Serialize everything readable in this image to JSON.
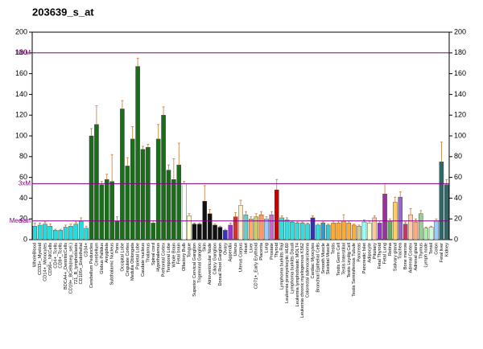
{
  "chart_data": {
    "type": "bar",
    "title": "203639_s_at",
    "ylim": [
      0,
      200
    ],
    "yticks": [
      0,
      20,
      40,
      60,
      80,
      100,
      120,
      140,
      160,
      180,
      200
    ],
    "reference_lines": [
      {
        "label": "10xM",
        "value": 180
      },
      {
        "label": "3xM",
        "value": 54
      },
      {
        "label": "Median",
        "value": 18
      }
    ],
    "categories": [
      "WholeBlood",
      "CD33+_Myeloid",
      "CD14+_Monocytes",
      "CD56+_NKCells",
      "CD4+_Tcells",
      "CD8+_Tcells",
      "BDCA4+_DentriticCells",
      "CD19+_BCells(neg._sel.)",
      "721_B_lymphoblasts",
      "CD105+_Endothelial",
      "CD34+",
      "Cerebellum Peduncles",
      "Cerebellum",
      "Globus Pallidus",
      "Amygdala",
      "Subthalamic Nucleus",
      "Pons",
      "Occipital Lobe",
      "Cingulate Cortex",
      "Medulla Oblongata",
      "Parietal Lobe",
      "Caudate nucleus",
      "Thalamus",
      "Spinal cord",
      "Hypothalamus",
      "Prefrontal Cortex",
      "Temporal Lobe",
      "Whole Brain",
      "Fetal brain",
      "Olfactory Bulb",
      "Tongue",
      "Superior Cervical Ganglion",
      "Trigeminal Ganglion",
      "Skin",
      "Atrioventricular Node",
      "Ciliary Ganglion",
      "Dorsal Root Ganglion",
      "Ovary",
      "Appendix",
      "Uterus",
      "Uterus Corpus",
      "Heart",
      "Liver",
      "CD71+_Early Erythroid",
      "Placenta",
      "Lung",
      "Prostate",
      "Thyroid",
      "Lymphoma burkitts Raji",
      "Leukemia promyelocytic HL60",
      "Lymphoma burkitts Daudi",
      "Leukemia lymphoblastic MOLT4",
      "Leukemia chronic myelogenous K562",
      "Colorectal adenocarcinoma",
      "Cardiac Myocytes",
      "Bronchial Epithelial Cells",
      "Smooth Muscle",
      "Skeletal Muscle",
      "Testis",
      "Testis Germ Cell",
      "Testis Interstitial",
      "Testis Leydig Cell",
      "Testis Seminiferous Tubule",
      "Pancreas",
      "Pancreatic Islet",
      "Adipocyte",
      "Pituitary",
      "Fetal Thyroid",
      "Fetal Lung",
      "Retina",
      "Salivary gland",
      "Trachea",
      "Bone marrow",
      "Adrenal Cortex",
      "Adrenal gland",
      "Thymus",
      "Lymph node",
      "Tonsil",
      "Colon",
      "Fetal liver",
      "Kidney"
    ],
    "values": [
      13,
      14,
      15,
      13,
      9,
      9,
      12,
      13,
      15,
      18,
      11,
      100,
      111,
      53,
      58,
      56,
      18,
      126,
      71,
      97,
      167,
      87,
      89,
      16,
      97,
      120,
      67,
      58,
      72,
      54,
      23,
      15,
      15,
      37,
      25,
      14,
      12,
      9,
      14,
      22,
      33,
      24,
      20,
      22,
      24,
      20,
      24,
      48,
      21,
      19,
      17,
      16,
      16,
      15,
      21,
      14,
      16,
      14,
      16,
      16,
      18,
      16,
      14,
      13,
      17,
      16,
      21,
      16,
      44,
      18,
      36,
      41,
      15,
      24,
      17,
      25,
      11,
      12,
      18,
      75,
      53
    ],
    "errors": [
      3,
      2,
      2,
      2,
      1,
      1,
      2,
      2,
      2,
      3,
      2,
      7,
      18,
      3,
      5,
      26,
      4,
      8,
      8,
      12,
      8,
      3,
      3,
      2,
      14,
      8,
      5,
      20,
      21,
      2,
      2,
      1,
      1,
      15,
      4,
      1,
      1,
      1,
      2,
      4,
      5,
      3,
      2,
      3,
      3,
      2,
      3,
      10,
      2,
      2,
      1,
      1,
      1,
      1,
      2,
      1,
      1,
      1,
      2,
      2,
      6,
      2,
      1,
      1,
      2,
      2,
      2,
      2,
      10,
      2,
      5,
      5,
      2,
      6,
      3,
      3,
      1,
      1,
      2,
      19,
      5
    ],
    "colors": [
      "#22dddd",
      "#22dddd",
      "#22dddd",
      "#22dddd",
      "#22dddd",
      "#22dddd",
      "#22dddd",
      "#22dddd",
      "#22dddd",
      "#22dddd",
      "#22dddd",
      "#1a6e1a",
      "#1a6e1a",
      "#1a6e1a",
      "#1a6e1a",
      "#1a6e1a",
      "#1a6e1a",
      "#1a6e1a",
      "#1a6e1a",
      "#1a6e1a",
      "#1a6e1a",
      "#1a6e1a",
      "#1a6e1a",
      "#1a6e1a",
      "#1a6e1a",
      "#1a6e1a",
      "#1a6e1a",
      "#1a6e1a",
      "#1a6e1a",
      "#ffffff",
      "#ffffcc",
      "#111111",
      "#111111",
      "#111111",
      "#111111",
      "#111111",
      "#111111",
      "#3333cc",
      "#9933cc",
      "#cc3333",
      "#ffeecc",
      "#66cccc",
      "#ffaa66",
      "#cccc66",
      "#ff9966",
      "#99ccff",
      "#cc66cc",
      "#cc0000",
      "#33dddd",
      "#33dddd",
      "#33dddd",
      "#33dddd",
      "#33dddd",
      "#33dddd",
      "#3333aa",
      "#33dddd",
      "#3399cc",
      "#33cccc",
      "#ffaa33",
      "#ffaa33",
      "#ffaa33",
      "#ffaa33",
      "#ffaa33",
      "#cccc99",
      "#99ffff",
      "#ffffcc",
      "#ffcc99",
      "#9933cc",
      "#993399",
      "#66aa66",
      "#ffcc66",
      "#9966cc",
      "#cc3366",
      "#ffccaa",
      "#ffaa88",
      "#99cc99",
      "#aaeeaa",
      "#ccffcc",
      "#99ccff",
      "#336666",
      "#336666"
    ]
  }
}
